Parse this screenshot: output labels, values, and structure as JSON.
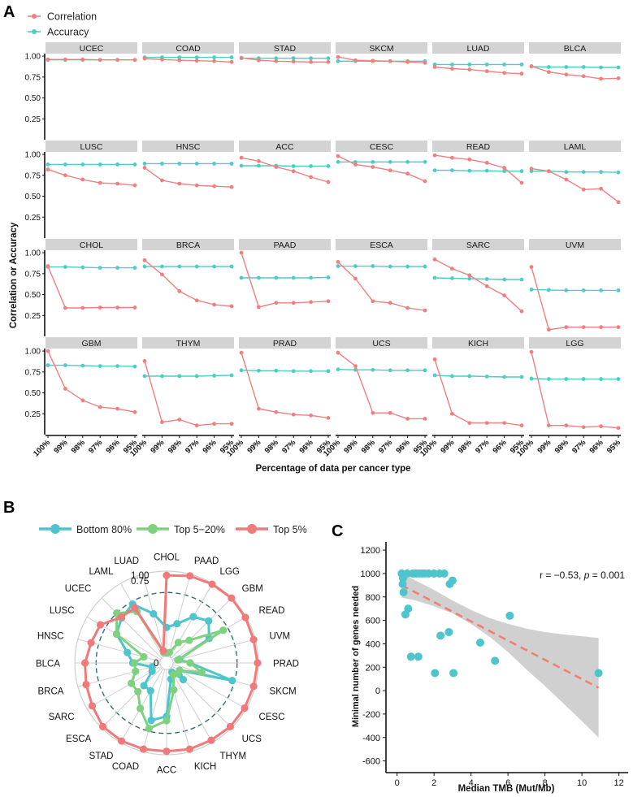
{
  "colors": {
    "correlation": "#f08080",
    "accuracy": "#4ecdc4",
    "bottom80": "#4ec4cc",
    "top5_20": "#7ed17e",
    "top5": "#f07a7a",
    "strip": "#d3d3d3",
    "ci_band": "#c8c8c8",
    "grid": "#cfcfcf"
  },
  "panels": {
    "a": "A",
    "b": "B",
    "c": "C"
  },
  "chart_data": [
    {
      "panel": "A",
      "type": "line",
      "legend": [
        "Correlation",
        "Accuracy"
      ],
      "ylabel": "Correlation or Accuracy",
      "xlabel": "Percentage of data per cancer type",
      "x": [
        "100%",
        "99%",
        "98%",
        "97%",
        "96%",
        "95%"
      ],
      "yticks": [
        "0.25",
        "0.50",
        "0.75",
        "1.00"
      ],
      "ylim": [
        0.0,
        1.03
      ],
      "facets": [
        {
          "name": "UCEC",
          "corr": [
            0.96,
            0.96,
            0.96,
            0.955,
            0.955,
            0.955
          ],
          "acc": [
            0.955,
            0.955,
            0.955,
            0.955,
            0.955,
            0.955
          ]
        },
        {
          "name": "COAD",
          "corr": [
            0.97,
            0.96,
            0.95,
            0.945,
            0.94,
            0.93
          ],
          "acc": [
            0.985,
            0.985,
            0.985,
            0.985,
            0.985,
            0.985
          ]
        },
        {
          "name": "STAD",
          "corr": [
            0.98,
            0.95,
            0.94,
            0.935,
            0.93,
            0.93
          ],
          "acc": [
            0.975,
            0.975,
            0.975,
            0.975,
            0.975,
            0.975
          ]
        },
        {
          "name": "SKCM",
          "corr": [
            0.99,
            0.95,
            0.945,
            0.94,
            0.93,
            0.92
          ],
          "acc": [
            0.94,
            0.94,
            0.94,
            0.94,
            0.94,
            0.94
          ]
        },
        {
          "name": "LUAD",
          "corr": [
            0.87,
            0.85,
            0.84,
            0.82,
            0.8,
            0.79
          ],
          "acc": [
            0.9,
            0.9,
            0.9,
            0.9,
            0.9,
            0.9
          ]
        },
        {
          "name": "BLCA",
          "corr": [
            0.88,
            0.81,
            0.78,
            0.76,
            0.73,
            0.735
          ],
          "acc": [
            0.875,
            0.87,
            0.87,
            0.87,
            0.865,
            0.865
          ]
        },
        {
          "name": "LUSC",
          "corr": [
            0.82,
            0.75,
            0.7,
            0.66,
            0.65,
            0.63
          ],
          "acc": [
            0.88,
            0.88,
            0.88,
            0.88,
            0.88,
            0.88
          ]
        },
        {
          "name": "HNSC",
          "corr": [
            0.84,
            0.69,
            0.65,
            0.63,
            0.62,
            0.61
          ],
          "acc": [
            0.89,
            0.89,
            0.89,
            0.89,
            0.89,
            0.89
          ]
        },
        {
          "name": "ACC",
          "corr": [
            0.96,
            0.92,
            0.85,
            0.8,
            0.73,
            0.67
          ],
          "acc": [
            0.865,
            0.865,
            0.865,
            0.86,
            0.86,
            0.86
          ]
        },
        {
          "name": "CESC",
          "corr": [
            0.98,
            0.88,
            0.85,
            0.81,
            0.77,
            0.68
          ],
          "acc": [
            0.91,
            0.91,
            0.91,
            0.91,
            0.91,
            0.91
          ]
        },
        {
          "name": "READ",
          "corr": [
            0.99,
            0.96,
            0.94,
            0.9,
            0.84,
            0.66
          ],
          "acc": [
            0.81,
            0.81,
            0.805,
            0.805,
            0.8,
            0.8
          ]
        },
        {
          "name": "LAML",
          "corr": [
            0.83,
            0.8,
            0.7,
            0.58,
            0.59,
            0.43
          ],
          "acc": [
            0.8,
            0.8,
            0.79,
            0.79,
            0.79,
            0.785
          ]
        },
        {
          "name": "CHOL",
          "corr": [
            0.84,
            0.34,
            0.34,
            0.345,
            0.345,
            0.345
          ],
          "acc": [
            0.83,
            0.83,
            0.825,
            0.82,
            0.82,
            0.82
          ]
        },
        {
          "name": "BRCA",
          "corr": [
            0.91,
            0.74,
            0.54,
            0.43,
            0.38,
            0.36
          ],
          "acc": [
            0.835,
            0.835,
            0.835,
            0.835,
            0.835,
            0.835
          ]
        },
        {
          "name": "PAAD",
          "corr": [
            1.0,
            0.35,
            0.4,
            0.4,
            0.41,
            0.42
          ],
          "acc": [
            0.7,
            0.7,
            0.7,
            0.7,
            0.7,
            0.705
          ]
        },
        {
          "name": "ESCA",
          "corr": [
            0.89,
            0.69,
            0.42,
            0.4,
            0.34,
            0.31
          ],
          "acc": [
            0.84,
            0.84,
            0.84,
            0.835,
            0.835,
            0.835
          ]
        },
        {
          "name": "SARC",
          "corr": [
            0.92,
            0.81,
            0.73,
            0.6,
            0.49,
            0.3
          ],
          "acc": [
            0.7,
            0.695,
            0.69,
            0.685,
            0.68,
            0.68
          ]
        },
        {
          "name": "UVM",
          "corr": [
            0.83,
            0.08,
            0.11,
            0.11,
            0.11,
            0.11
          ],
          "acc": [
            0.56,
            0.555,
            0.55,
            0.55,
            0.55,
            0.55
          ]
        },
        {
          "name": "GBM",
          "corr": [
            1.0,
            0.55,
            0.41,
            0.33,
            0.31,
            0.27
          ],
          "acc": [
            0.83,
            0.83,
            0.825,
            0.82,
            0.82,
            0.815
          ]
        },
        {
          "name": "THYM",
          "corr": [
            0.88,
            0.15,
            0.18,
            0.11,
            0.13,
            0.13
          ],
          "acc": [
            0.7,
            0.7,
            0.7,
            0.7,
            0.705,
            0.71
          ]
        },
        {
          "name": "PRAD",
          "corr": [
            0.98,
            0.31,
            0.27,
            0.24,
            0.23,
            0.2
          ],
          "acc": [
            0.77,
            0.765,
            0.765,
            0.76,
            0.76,
            0.76
          ]
        },
        {
          "name": "UCS",
          "corr": [
            0.98,
            0.82,
            0.26,
            0.26,
            0.19,
            0.19
          ],
          "acc": [
            0.78,
            0.775,
            0.775,
            0.77,
            0.77,
            0.77
          ]
        },
        {
          "name": "KICH",
          "corr": [
            0.9,
            0.25,
            0.14,
            0.14,
            0.14,
            0.11
          ],
          "acc": [
            0.71,
            0.7,
            0.7,
            0.695,
            0.69,
            0.69
          ]
        },
        {
          "name": "LGG",
          "corr": [
            0.99,
            0.11,
            0.11,
            0.09,
            0.1,
            0.08
          ],
          "acc": [
            0.67,
            0.665,
            0.665,
            0.665,
            0.665,
            0.665
          ]
        }
      ]
    },
    {
      "panel": "B",
      "type": "radar",
      "legend": [
        "Bottom 80%",
        "Top 5−20%",
        "Top 5%"
      ],
      "categories": [
        "CHOL",
        "PAAD",
        "LGG",
        "GBM",
        "READ",
        "UVM",
        "PRAD",
        "SKCM",
        "CESC",
        "UCS",
        "THYM",
        "KICH",
        "ACC",
        "COAD",
        "STAD",
        "ESCA",
        "SARC",
        "BRCA",
        "BLCA",
        "HNSC",
        "LUSC",
        "UCEC",
        "LAML",
        "LUAD"
      ],
      "rlabels": [
        "0",
        "0.75",
        "1.00"
      ],
      "rlim": [
        0,
        1.0
      ],
      "reference_ring": 0.75,
      "series": [
        {
          "name": "Bottom 80%",
          "values": [
            0.34,
            0.4,
            0.55,
            0.62,
            0.5,
            0.08,
            0.2,
            0.72,
            0.1,
            0.2,
            0.05,
            0.12,
            0.55,
            0.62,
            0.3,
            0.3,
            0.12,
            0.1,
            0.32,
            0.4,
            0.6,
            0.67,
            0.72,
            0.52
          ]
        },
        {
          "name": "Top 5−20%",
          "values": [
            0.04,
            0.05,
            0.2,
            0.3,
            0.69,
            0.06,
            0.2,
            0.35,
            0.1,
            0.1,
            0.08,
            0.25,
            0.6,
            0.72,
            0.54,
            0.4,
            0.4,
            0.3,
            0.3,
            0.2,
            0.6,
            0.75,
            0.62,
            0.05
          ]
        },
        {
          "name": "Top 5%",
          "values": [
            0.95,
            0.98,
            0.99,
            1.0,
            0.99,
            0.98,
            0.99,
            0.98,
            0.98,
            0.98,
            0.97,
            0.97,
            0.96,
            0.97,
            0.98,
            0.98,
            0.93,
            0.9,
            0.88,
            0.84,
            0.82,
            0.68,
            0.67,
            0.07
          ]
        }
      ]
    },
    {
      "panel": "C",
      "type": "scatter",
      "xlabel": "Median TMB (Mut/Mb)",
      "ylabel": "Minimal number of genes needed",
      "annotation": {
        "r_text": "r = −0.53, ",
        "p_label": "p",
        "p_text": " = 0.001"
      },
      "xlim": [
        -0.6,
        12.5
      ],
      "ylim": [
        -700,
        1270
      ],
      "xticks": [
        0,
        2,
        4,
        6,
        8,
        10,
        12
      ],
      "yticks": [
        -600,
        -400,
        -200,
        0,
        200,
        400,
        600,
        800,
        1000,
        1200
      ],
      "points": [
        {
          "x": 0.25,
          "y": 1000
        },
        {
          "x": 0.3,
          "y": 910
        },
        {
          "x": 0.32,
          "y": 960
        },
        {
          "x": 0.35,
          "y": 840
        },
        {
          "x": 0.45,
          "y": 650
        },
        {
          "x": 0.55,
          "y": 1000
        },
        {
          "x": 0.6,
          "y": 700
        },
        {
          "x": 0.75,
          "y": 290
        },
        {
          "x": 0.85,
          "y": 1000
        },
        {
          "x": 0.95,
          "y": 1000
        },
        {
          "x": 1.05,
          "y": 1000
        },
        {
          "x": 1.15,
          "y": 290
        },
        {
          "x": 1.2,
          "y": 1000
        },
        {
          "x": 1.35,
          "y": 1000
        },
        {
          "x": 1.5,
          "y": 1000
        },
        {
          "x": 1.7,
          "y": 1000
        },
        {
          "x": 2.0,
          "y": 1000
        },
        {
          "x": 2.05,
          "y": 150
        },
        {
          "x": 2.3,
          "y": 1000
        },
        {
          "x": 2.35,
          "y": 470
        },
        {
          "x": 2.55,
          "y": 1000
        },
        {
          "x": 2.8,
          "y": 500
        },
        {
          "x": 2.85,
          "y": 910
        },
        {
          "x": 3.0,
          "y": 940
        },
        {
          "x": 3.05,
          "y": 150
        },
        {
          "x": 4.5,
          "y": 410
        },
        {
          "x": 5.3,
          "y": 255
        },
        {
          "x": 6.1,
          "y": 640
        },
        {
          "x": 10.9,
          "y": 150
        }
      ],
      "fit": {
        "x0": 0.25,
        "y0": 900,
        "x1": 10.9,
        "y1": 25
      },
      "ci_upper": [
        [
          0.25,
          1005
        ],
        [
          1.0,
          940
        ],
        [
          2.0,
          860
        ],
        [
          3.0,
          770
        ],
        [
          4.0,
          690
        ],
        [
          5.0,
          620
        ],
        [
          6.0,
          570
        ],
        [
          7.0,
          530
        ],
        [
          8.0,
          500
        ],
        [
          9.0,
          480
        ],
        [
          10.0,
          465
        ],
        [
          10.9,
          450
        ]
      ],
      "ci_lower": [
        [
          0.25,
          795
        ],
        [
          1.0,
          770
        ],
        [
          2.0,
          720
        ],
        [
          3.0,
          660
        ],
        [
          4.0,
          570
        ],
        [
          5.0,
          460
        ],
        [
          6.0,
          330
        ],
        [
          7.0,
          180
        ],
        [
          8.0,
          40
        ],
        [
          9.0,
          -110
        ],
        [
          10.0,
          -260
        ],
        [
          10.9,
          -400
        ]
      ]
    }
  ]
}
